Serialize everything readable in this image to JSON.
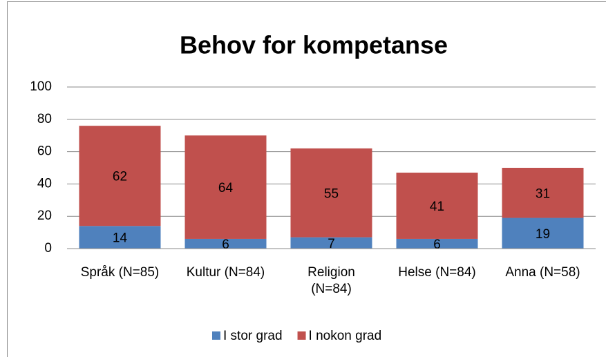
{
  "chart_data": {
    "type": "stacked_bar",
    "title": "Behov for kompetanse",
    "categories": [
      "Språk (N=85)",
      "Kultur (N=84)",
      "Religion (N=84)",
      "Helse (N=84)",
      "Anna (N=58)"
    ],
    "series": [
      {
        "name": "I stor grad",
        "color": "#4f81bd",
        "values": [
          14,
          6,
          7,
          6,
          19
        ]
      },
      {
        "name": "I nokon grad",
        "color": "#c0504d",
        "values": [
          62,
          64,
          55,
          41,
          31
        ]
      }
    ],
    "ylim": [
      0,
      100
    ],
    "yticks": [
      0,
      20,
      40,
      60,
      80,
      100
    ],
    "grid": true,
    "legend": "bottom"
  }
}
